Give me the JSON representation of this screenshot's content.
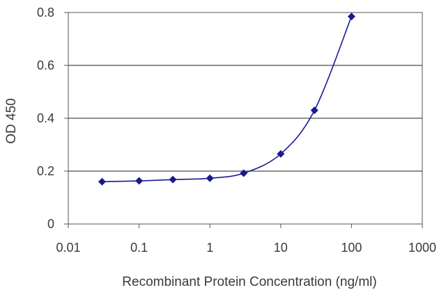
{
  "chart_data": {
    "type": "line",
    "title": "",
    "xlabel": "Recombinant Protein Concentration (ng/ml)",
    "ylabel": "OD 450",
    "xscale": "log",
    "xlim": [
      0.01,
      1000
    ],
    "ylim": [
      0,
      0.8
    ],
    "xticks": [
      0.01,
      0.1,
      1,
      10,
      100,
      1000
    ],
    "xtick_labels": [
      "0.01",
      "0.1",
      "1",
      "10",
      "100",
      "1000"
    ],
    "yticks": [
      0,
      0.2,
      0.4,
      0.6,
      0.8
    ],
    "ytick_labels": [
      "0",
      "0.2",
      "0.4",
      "0.6",
      "0.8"
    ],
    "grid": "horizontal",
    "legend": "none",
    "colors": {
      "series": "#1a1a8c",
      "grid": "#4a4a4a",
      "axis": "#555555"
    },
    "series": [
      {
        "x": [
          0.03,
          0.1,
          0.3,
          1,
          3,
          10,
          30,
          100
        ],
        "y": [
          0.16,
          0.163,
          0.168,
          0.173,
          0.192,
          0.265,
          0.43,
          0.785
        ],
        "marker": "diamond",
        "fit": "smooth-curve"
      }
    ]
  }
}
